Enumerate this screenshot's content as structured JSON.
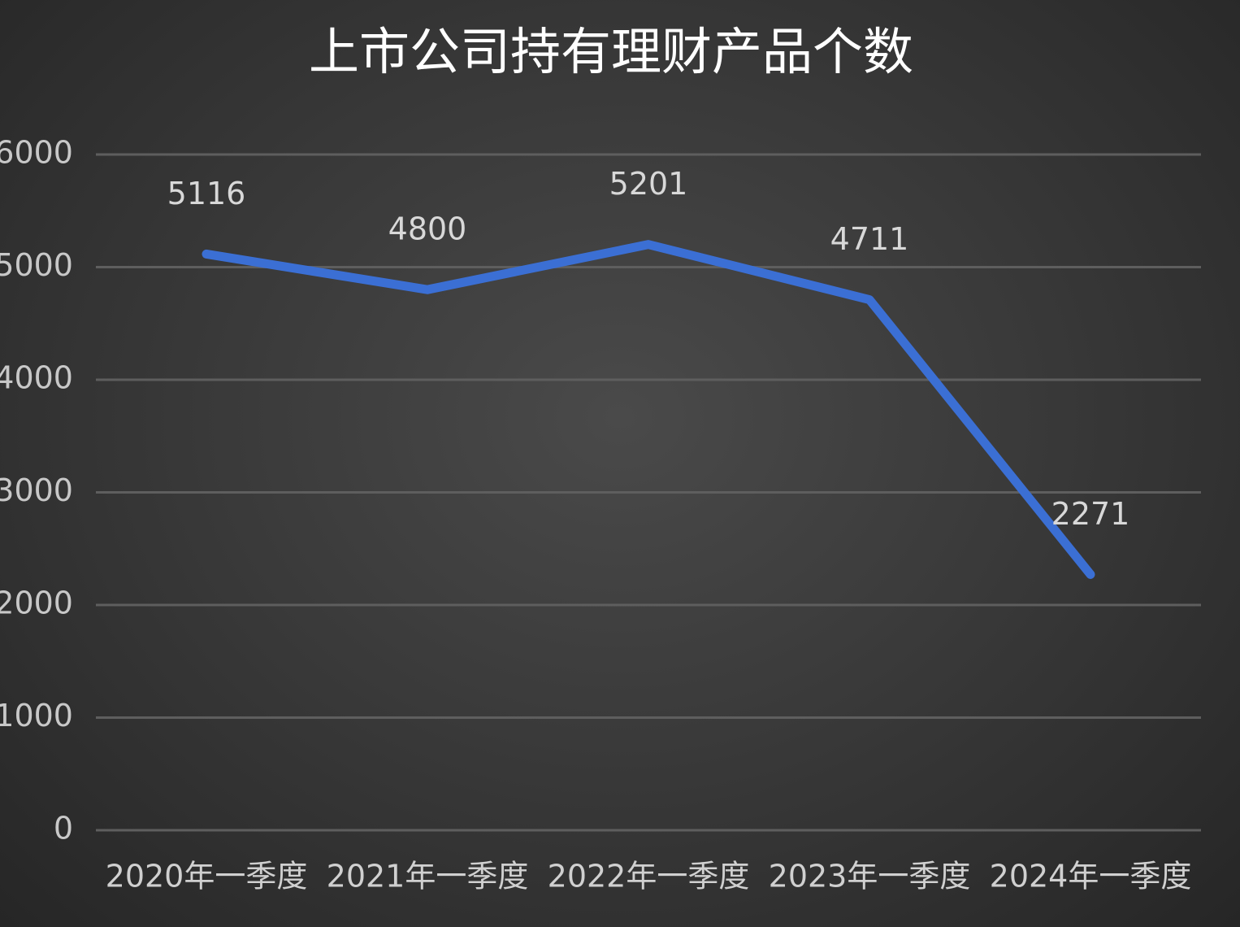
{
  "chart_data": {
    "type": "line",
    "title": "上市公司持有理财产品个数",
    "categories": [
      "2020年一季度",
      "2021年一季度",
      "2022年一季度",
      "2023年一季度",
      "2024年一季度"
    ],
    "series": [
      {
        "values": [
          5116,
          4800,
          5201,
          4711,
          2271
        ],
        "color": "#3b6fd4"
      }
    ],
    "ylim": [
      0,
      6000
    ],
    "yticks": [
      0,
      1000,
      2000,
      3000,
      4000,
      5000,
      6000
    ],
    "grid": true
  }
}
